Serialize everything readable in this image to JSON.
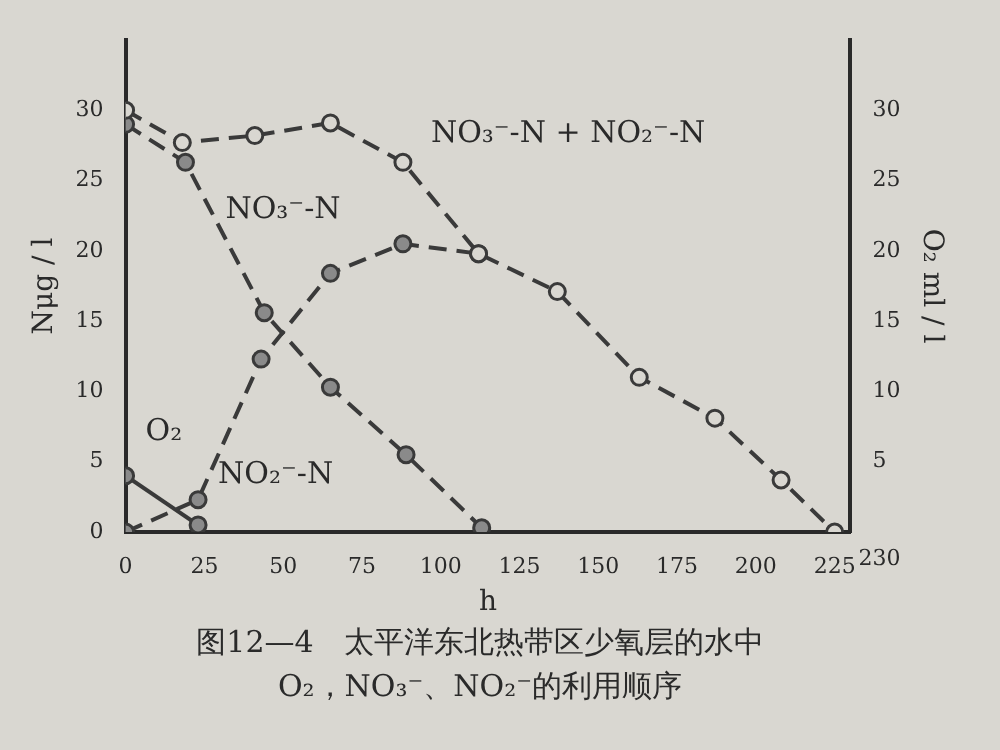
{
  "chart_data": {
    "type": "line",
    "xlabel": "h",
    "ylabel": "Nμg / l",
    "y2label": "O₂ ml / l",
    "annotations": [
      "图12—4　太平洋东北热带区少氧层的水中",
      "O₂，NO₃⁻、NO₂⁻的利用顺序",
      {
        "text": "230",
        "x": 230,
        "y": 0
      }
    ],
    "xlim": [
      0,
      230
    ],
    "xticks": [
      0,
      25,
      50,
      75,
      100,
      125,
      150,
      175,
      200,
      225
    ],
    "ylim": [
      0,
      35
    ],
    "yticks": [
      0,
      5,
      10,
      15,
      20,
      25,
      30
    ],
    "y2lim": [
      0,
      35
    ],
    "y2ticks": [
      5,
      10,
      15,
      20,
      25,
      30
    ],
    "grid": false,
    "legend": false,
    "marker": "circle",
    "series": [
      {
        "name": "NO₃⁻-N + NO₂⁻-N",
        "color": "#3a3a3a",
        "line_style": "dashed",
        "x": [
          0,
          18,
          41,
          65,
          88,
          112,
          137,
          163,
          187,
          208,
          225
        ],
        "values": [
          30,
          27.7,
          28.2,
          29.1,
          26.3,
          19.8,
          17.1,
          11,
          8.1,
          3.7,
          0
        ]
      },
      {
        "name": "NO₃⁻-N",
        "color": "#3a3a3a",
        "line_style": "dashed",
        "x": [
          0,
          19,
          44,
          65,
          89,
          113
        ],
        "values": [
          29,
          26.3,
          15.6,
          10.3,
          5.5,
          0.3
        ]
      },
      {
        "name": "NO₂⁻-N",
        "color": "#3a3a3a",
        "line_style": "dashed",
        "x": [
          0,
          23,
          43,
          65,
          88,
          112
        ],
        "values": [
          0,
          2.3,
          12.3,
          18.4,
          20.5,
          19.8
        ]
      },
      {
        "name": "O₂",
        "color": "#3a3a3a",
        "line_style": "solid",
        "axis": "y2",
        "x": [
          0,
          23
        ],
        "values": [
          4,
          0.5
        ]
      }
    ]
  }
}
